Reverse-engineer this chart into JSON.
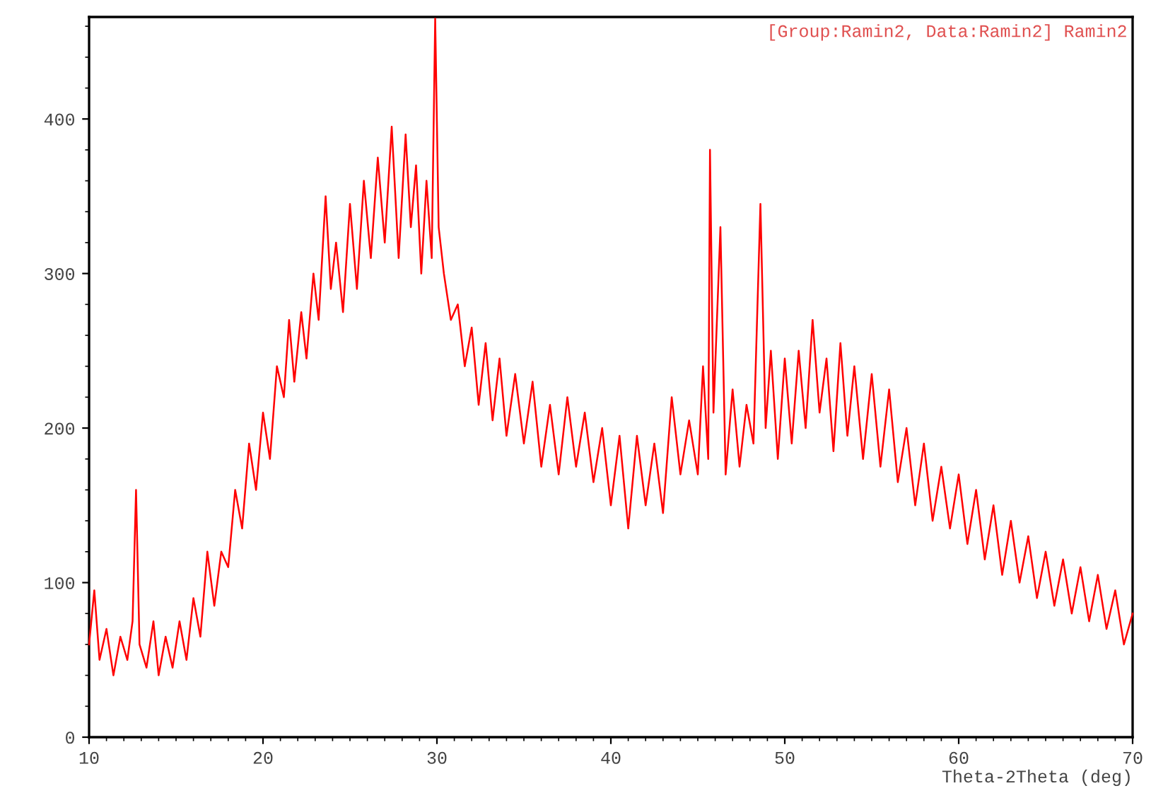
{
  "chart_data": {
    "type": "line",
    "title": "[Group:Ramin2, Data:Ramin2] Ramin2",
    "xlabel": "Theta-2Theta (deg)",
    "xlim": [
      10,
      70
    ],
    "xticks": [
      10,
      20,
      30,
      40,
      50,
      60,
      70
    ],
    "ylim": [
      0,
      466
    ],
    "yticks": [
      0,
      100,
      200,
      300,
      400
    ],
    "grid": false,
    "legend": false,
    "marker": "none",
    "line_style": "solid",
    "series": [
      {
        "color": "#ff0000",
        "x": [
          10,
          10.3,
          10.6,
          11,
          11.4,
          11.8,
          12.2,
          12.5,
          12.7,
          12.9,
          13.3,
          13.7,
          14.0,
          14.4,
          14.8,
          15.2,
          15.6,
          16.0,
          16.4,
          16.8,
          17.2,
          17.6,
          18.0,
          18.4,
          18.8,
          19.2,
          19.6,
          20.0,
          20.4,
          20.8,
          21.2,
          21.5,
          21.8,
          22.2,
          22.5,
          22.9,
          23.2,
          23.6,
          23.9,
          24.2,
          24.6,
          25.0,
          25.4,
          25.8,
          26.2,
          26.6,
          27.0,
          27.4,
          27.8,
          28.2,
          28.5,
          28.8,
          29.1,
          29.4,
          29.7,
          29.9,
          30.1,
          30.4,
          30.8,
          31.2,
          31.6,
          32.0,
          32.4,
          32.8,
          33.2,
          33.6,
          34.0,
          34.5,
          35.0,
          35.5,
          36.0,
          36.5,
          37.0,
          37.5,
          38.0,
          38.5,
          39.0,
          39.5,
          40.0,
          40.5,
          41.0,
          41.5,
          42.0,
          42.5,
          43.0,
          43.5,
          44.0,
          44.5,
          45.0,
          45.3,
          45.6,
          45.7,
          45.9,
          46.3,
          46.6,
          47.0,
          47.4,
          47.8,
          48.2,
          48.6,
          48.9,
          49.2,
          49.6,
          50.0,
          50.4,
          50.8,
          51.2,
          51.6,
          52.0,
          52.4,
          52.8,
          53.2,
          53.6,
          54.0,
          54.5,
          55.0,
          55.5,
          56.0,
          56.5,
          57.0,
          57.5,
          58.0,
          58.5,
          59.0,
          59.5,
          60.0,
          60.5,
          61.0,
          61.5,
          62.0,
          62.5,
          63.0,
          63.5,
          64.0,
          64.5,
          65.0,
          65.5,
          66.0,
          66.5,
          67.0,
          67.5,
          68.0,
          68.5,
          69.0,
          69.5,
          70.0
        ],
        "values": [
          60,
          95,
          50,
          70,
          40,
          65,
          50,
          75,
          160,
          60,
          45,
          75,
          40,
          65,
          45,
          75,
          50,
          90,
          65,
          120,
          85,
          120,
          110,
          160,
          135,
          190,
          160,
          210,
          180,
          240,
          220,
          270,
          230,
          275,
          245,
          300,
          270,
          350,
          290,
          320,
          275,
          345,
          290,
          360,
          310,
          375,
          320,
          395,
          310,
          390,
          330,
          370,
          300,
          360,
          310,
          465,
          330,
          300,
          270,
          280,
          240,
          265,
          215,
          255,
          205,
          245,
          195,
          235,
          190,
          230,
          175,
          215,
          170,
          220,
          175,
          210,
          165,
          200,
          150,
          195,
          135,
          195,
          150,
          190,
          145,
          220,
          170,
          205,
          170,
          240,
          180,
          380,
          210,
          330,
          170,
          225,
          175,
          215,
          190,
          345,
          200,
          250,
          180,
          245,
          190,
          250,
          200,
          270,
          210,
          245,
          185,
          255,
          195,
          240,
          180,
          235,
          175,
          225,
          165,
          200,
          150,
          190,
          140,
          175,
          135,
          170,
          125,
          160,
          115,
          150,
          105,
          140,
          100,
          130,
          90,
          120,
          85,
          115,
          80,
          110,
          75,
          105,
          70,
          95,
          60,
          80
        ]
      }
    ]
  }
}
